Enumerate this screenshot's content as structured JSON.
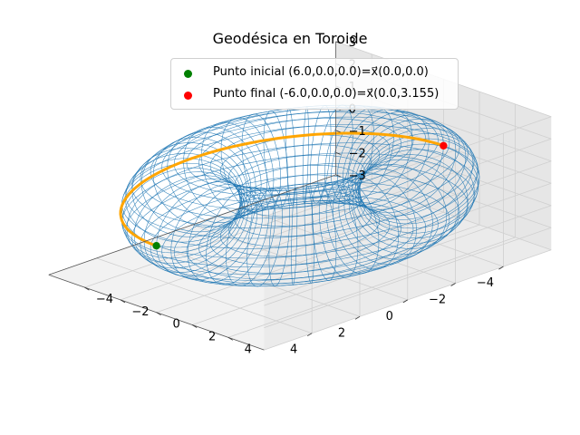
{
  "chart_data": {
    "type": "3d-wireframe",
    "title": "Geodésica en Toroide",
    "surface": {
      "name": "Toroide",
      "major_radius": 4,
      "minor_radius": 2,
      "color": "#1f77b4"
    },
    "geodesic": {
      "color": "#ffa500",
      "start": [
        6.0,
        0.0,
        0.0
      ],
      "end": [
        -6.0,
        0.0,
        0.0
      ]
    },
    "points": [
      {
        "label": "Punto inicial (6.0,0.0,0.0)=x⃗(0.0,0.0)",
        "xyz": [
          6.0,
          0.0,
          0.0
        ],
        "color": "#008000"
      },
      {
        "label": "Punto final (-6.0,0.0,0.0)=x⃗(0.0,3.155)",
        "xyz": [
          -6.0,
          0.0,
          0.0
        ],
        "color": "#ff0000"
      }
    ],
    "axes": {
      "x_ticks": [
        "−4",
        "−2",
        "0",
        "2",
        "4"
      ],
      "y_ticks": [
        "−4",
        "−2",
        "0",
        "2",
        "4"
      ],
      "z_ticks": [
        "−3",
        "−2",
        "−1",
        "0",
        "1",
        "2",
        "3"
      ]
    },
    "legend_position": "top"
  }
}
